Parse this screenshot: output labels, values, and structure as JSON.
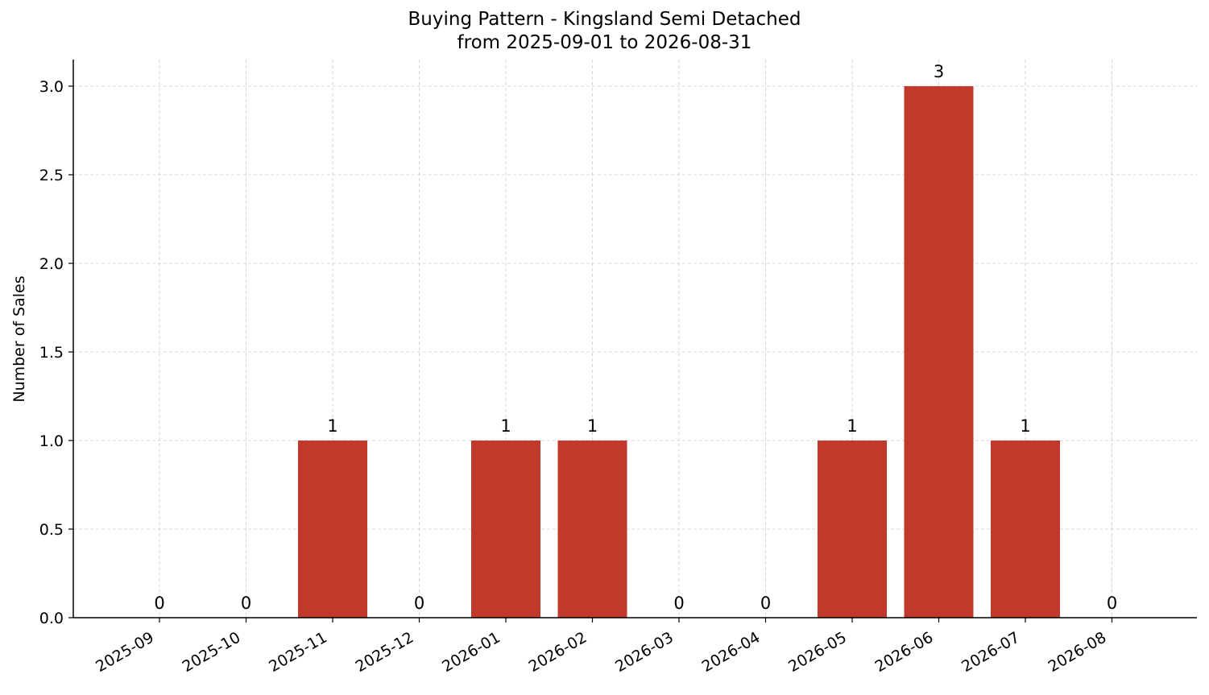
{
  "chart_data": {
    "type": "bar",
    "title": "Buying Pattern - Kingsland Semi Detached",
    "subtitle": "from 2025-09-01 to 2026-08-31",
    "xlabel": "",
    "ylabel": "Number of Sales",
    "categories": [
      "2025-09",
      "2025-10",
      "2025-11",
      "2025-12",
      "2026-01",
      "2026-02",
      "2026-03",
      "2026-04",
      "2026-05",
      "2026-06",
      "2026-07",
      "2026-08"
    ],
    "values": [
      0,
      0,
      1,
      0,
      1,
      1,
      0,
      0,
      1,
      3,
      1,
      0
    ],
    "data_labels": [
      "0",
      "0",
      "1",
      "0",
      "1",
      "1",
      "0",
      "0",
      "1",
      "3",
      "1",
      "0"
    ],
    "yticks": [
      0.0,
      0.5,
      1.0,
      1.5,
      2.0,
      2.5,
      3.0
    ],
    "ytick_labels": [
      "0.0",
      "0.5",
      "1.0",
      "1.5",
      "2.0",
      "2.5",
      "3.0"
    ],
    "ylim": [
      0,
      3.15
    ],
    "grid": true,
    "bar_color": "#c0392b",
    "grid_color": "#cccccc"
  }
}
